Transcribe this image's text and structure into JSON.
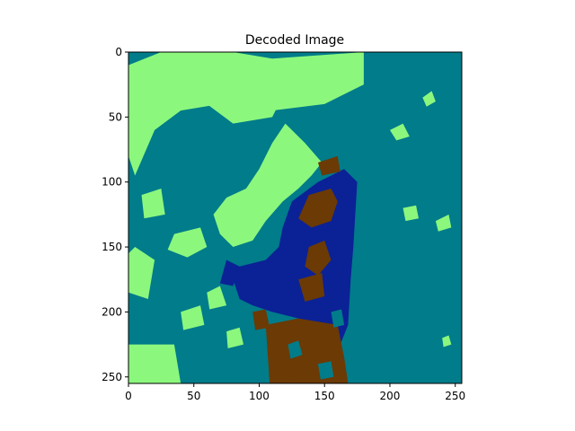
{
  "chart_data": {
    "type": "heatmap",
    "title": "Decoded Image",
    "xlabel": "",
    "ylabel": "",
    "xlim": [
      0,
      255
    ],
    "ylim": [
      255,
      0
    ],
    "x_ticks": [
      0,
      50,
      100,
      150,
      200,
      250
    ],
    "y_ticks": [
      0,
      50,
      100,
      150,
      200,
      250
    ],
    "grid": false,
    "colormap": "terrain",
    "classes": [
      {
        "id": 0,
        "color": "#0b2196"
      },
      {
        "id": 1,
        "color": "#007c8a"
      },
      {
        "id": 2,
        "color": "#8cf77d"
      },
      {
        "id": 3,
        "color": "#6b3a05"
      }
    ]
  }
}
